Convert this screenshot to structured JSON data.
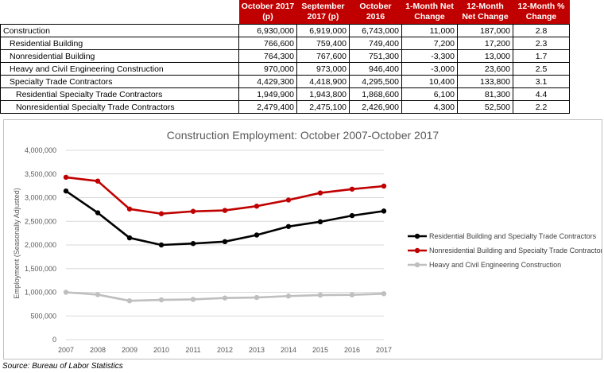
{
  "table": {
    "headers": [
      "",
      "October 2017\n(p)",
      "September\n2017 (p)",
      "October 2016",
      "1-Month Net\nChange",
      "12-Month\nNet Change",
      "12-Month %\nChange"
    ],
    "rows": [
      {
        "industry": "Construction",
        "level": 0,
        "oct2017": "6,930,000",
        "sep2017": "6,919,000",
        "oct2016": "6,743,000",
        "month_change": "11,000",
        "year_change": "187,000",
        "pct_change": "2.8"
      },
      {
        "industry": "Residential Building",
        "level": 1,
        "oct2017": "766,600",
        "sep2017": "759,400",
        "oct2016": "749,400",
        "month_change": "7,200",
        "year_change": "17,200",
        "pct_change": "2.3"
      },
      {
        "industry": "Nonresidential Building",
        "level": 1,
        "oct2017": "764,300",
        "sep2017": "767,600",
        "oct2016": "751,300",
        "month_change": "-3,300",
        "year_change": "13,000",
        "pct_change": "1.7"
      },
      {
        "industry": "Heavy and Civil Engineering Construction",
        "level": 1,
        "oct2017": "970,000",
        "sep2017": "973,000",
        "oct2016": "946,400",
        "month_change": "-3,000",
        "year_change": "23,600",
        "pct_change": "2.5"
      },
      {
        "industry": "Specialty Trade Contractors",
        "level": 1,
        "oct2017": "4,429,300",
        "sep2017": "4,418,900",
        "oct2016": "4,295,500",
        "month_change": "10,400",
        "year_change": "133,800",
        "pct_change": "3.1"
      },
      {
        "industry": "Residential Specialty Trade Contractors",
        "level": 2,
        "oct2017": "1,949,900",
        "sep2017": "1,943,800",
        "oct2016": "1,868,600",
        "month_change": "6,100",
        "year_change": "81,300",
        "pct_change": "4.4"
      },
      {
        "industry": "Nonresidential Specialty Trade Contractors",
        "level": 2,
        "oct2017": "2,479,400",
        "sep2017": "2,475,100",
        "oct2016": "2,426,900",
        "month_change": "4,300",
        "year_change": "52,500",
        "pct_change": "2.2"
      }
    ]
  },
  "chart_data": {
    "type": "line",
    "title": "Construction Employment: October 2007-October 2017",
    "xlabel": "",
    "ylabel": "Employment (Seasonally Adjusted)",
    "x": [
      "2007",
      "2008",
      "2009",
      "2010",
      "2011",
      "2012",
      "2013",
      "2014",
      "2015",
      "2016",
      "2017"
    ],
    "ylim": [
      0,
      4000000
    ],
    "yticks": [
      0,
      500000,
      1000000,
      1500000,
      2000000,
      2500000,
      3000000,
      3500000,
      4000000
    ],
    "ytick_labels": [
      "0",
      "500,000",
      "1,000,000",
      "1,500,000",
      "2,000,000",
      "2,500,000",
      "3,000,000",
      "3,500,000",
      "4,000,000"
    ],
    "grid": true,
    "legend_position": "right",
    "series": [
      {
        "name": "Residential Building and Specialty Trade Contractors",
        "color": "#000000",
        "values": [
          3140000,
          2680000,
          2150000,
          2000000,
          2030000,
          2070000,
          2210000,
          2390000,
          2490000,
          2620000,
          2716500
        ]
      },
      {
        "name": "Nonresidential Building and Specialty Trade Contractors",
        "color": "#c00000",
        "values": [
          3430000,
          3350000,
          2760000,
          2660000,
          2710000,
          2730000,
          2820000,
          2950000,
          3100000,
          3180000,
          3243700
        ]
      },
      {
        "name": "Heavy and Civil Engineering Construction",
        "color": "#bfbfbf",
        "values": [
          1000000,
          950000,
          820000,
          840000,
          850000,
          880000,
          890000,
          920000,
          940000,
          946400,
          970000
        ]
      }
    ]
  },
  "source": "Source: Bureau of Labor Statistics"
}
